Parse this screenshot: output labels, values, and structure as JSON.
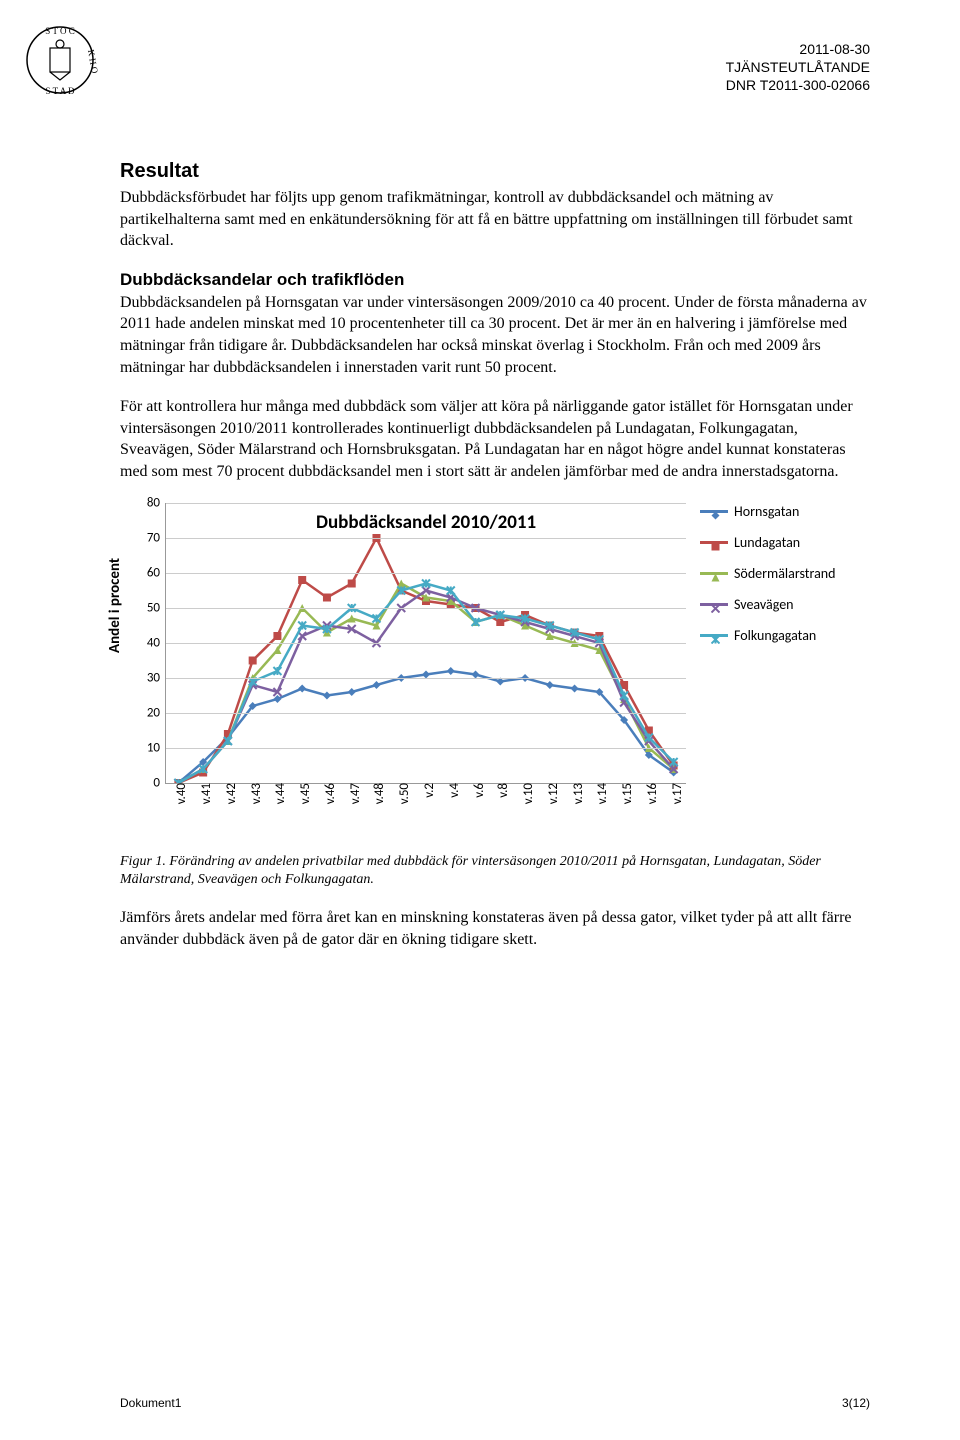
{
  "header": {
    "date": "2011-08-30",
    "doc_type": "TJÄNSTEUTLÅTANDE",
    "dnr": "DNR T2011-300-02066"
  },
  "section_title": "Resultat",
  "para1": "Dubbdäcksförbudet har följts upp genom trafikmätningar, kontroll av dubbdäcksandel och mätning av partikelhalterna samt med en enkätundersökning för att få en bättre uppfattning om inställningen till förbudet samt däckval.",
  "sub_title": "Dubbdäcksandelar och trafikflöden",
  "para2": "Dubbdäcksandelen på Hornsgatan var under vintersäsongen 2009/2010 ca 40 procent. Under de första månaderna av 2011 hade andelen minskat med 10 procentenheter till ca 30 procent. Det är mer än en halvering i jämförelse med mätningar från tidigare år. Dubbdäcksandelen har också minskat överlag i Stockholm. Från och med 2009 års mätningar har dubbdäcksandelen i innerstaden varit runt 50 procent.",
  "para3": "För att kontrollera hur många med dubbdäck som väljer att köra på närliggande gator istället för Hornsgatan under vintersäsongen 2010/2011 kontrollerades kontinuerligt dubbdäcksandelen på Lundagatan, Folkungagatan, Sveavägen, Söder Mälarstrand och Hornsbruksgatan. På Lundagatan har en något högre andel kunnat konstateras med som mest 70 procent dubbdäcksandel men i stort sätt är andelen jämförbar med de andra innerstadsgatorna.",
  "caption": "Figur 1. Förändring av andelen privatbilar med dubbdäck för vintersäsongen 2010/2011 på Hornsgatan, Lundagatan, Söder Mälarstrand, Sveavägen och Folkungagatan.",
  "para4": "Jämförs årets andelar med förra året kan en minskning konstateras även på dessa gator, vilket tyder på att allt färre använder dubbdäck även på de gator där en ökning tidigare skett.",
  "footer": {
    "left": "Dokument1",
    "right": "3(12)"
  },
  "chart": {
    "type": "line",
    "title": "Dubbdäcksandel 2010/2011",
    "ylabel": "Andel i procent",
    "ylim": [
      0,
      80
    ],
    "ytick_step": 10,
    "grid_color": "#cccccc",
    "xticks": [
      "v.40",
      "v.41",
      "v.42",
      "v.43",
      "v.44",
      "v.45",
      "v.46",
      "v.47",
      "v.48",
      "v.50",
      "v.2",
      "v.4",
      "v.6",
      "v.8",
      "v.10",
      "v.12",
      "v.13",
      "v.14",
      "v.15",
      "v.16",
      "v.17"
    ],
    "series": [
      {
        "name": "Hornsgatan",
        "color": "#4a7ebb",
        "line_width": 2.5,
        "marker": "diamond",
        "values": [
          0,
          6,
          13,
          22,
          24,
          27,
          25,
          26,
          28,
          30,
          31,
          32,
          31,
          29,
          30,
          28,
          27,
          26,
          18,
          8,
          3
        ]
      },
      {
        "name": "Lundagatan",
        "color": "#be4b48",
        "line_width": 2.5,
        "marker": "square",
        "values": [
          0,
          3,
          14,
          35,
          42,
          58,
          53,
          57,
          70,
          55,
          52,
          51,
          50,
          46,
          48,
          45,
          43,
          42,
          28,
          15,
          5
        ]
      },
      {
        "name": "Södermälarstrand",
        "color": "#98b954",
        "line_width": 2.5,
        "marker": "triangle",
        "values": [
          0,
          4,
          12,
          30,
          38,
          50,
          43,
          47,
          45,
          57,
          53,
          52,
          46,
          48,
          45,
          42,
          40,
          38,
          24,
          10,
          4
        ]
      },
      {
        "name": "Sveavägen",
        "color": "#7d60a0",
        "line_width": 2.5,
        "marker": "x",
        "values": [
          0,
          4,
          12,
          28,
          26,
          42,
          45,
          44,
          40,
          50,
          55,
          53,
          50,
          48,
          46,
          44,
          42,
          40,
          23,
          12,
          4
        ]
      },
      {
        "name": "Folkungagatan",
        "color": "#46aac5",
        "line_width": 2.5,
        "marker": "star",
        "values": [
          0,
          4,
          12,
          29,
          32,
          45,
          44,
          50,
          47,
          55,
          57,
          55,
          46,
          48,
          47,
          45,
          43,
          41,
          25,
          13,
          6
        ]
      }
    ]
  }
}
